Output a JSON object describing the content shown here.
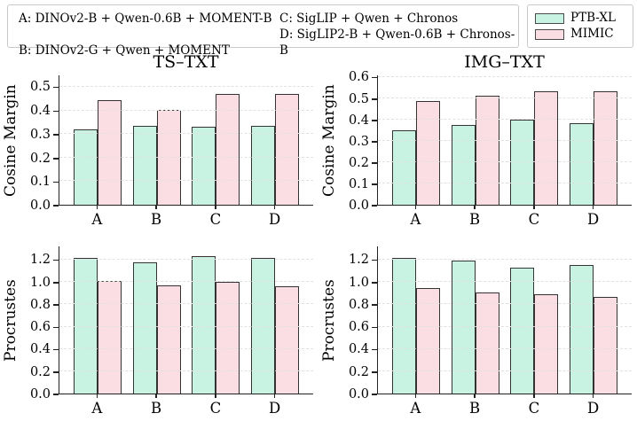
{
  "legend_models": {
    "items": [
      {
        "label": "A: DINOv2-B + Qwen-0.6B + MOMENT-B"
      },
      {
        "label": "B: DINOv2-G + Qwen + MOMENT"
      },
      {
        "label": "C: SigLIP + Qwen + Chronos"
      },
      {
        "label": "D: SigLIP2-B + Qwen-0.6B + Chronos-B"
      }
    ]
  },
  "legend_series": {
    "items": [
      {
        "label": "PTB-XL",
        "color": "#c8f2e2"
      },
      {
        "label": "MIMIC",
        "color": "#fbdee3"
      }
    ]
  },
  "style": {
    "bar_edge_color": "#333333",
    "grid_color": "#e1e1e1",
    "background": "#ffffff"
  },
  "chart_data": [
    {
      "id": "ts-txt-cosine-margin",
      "type": "bar",
      "title": "TS–TXT",
      "xlabel": "",
      "ylabel": "Cosine Margin",
      "categories": [
        "A",
        "B",
        "C",
        "D"
      ],
      "series": [
        {
          "name": "PTB-XL",
          "values": [
            0.32,
            0.335,
            0.33,
            0.335
          ]
        },
        {
          "name": "MIMIC",
          "values": [
            0.445,
            0.405,
            0.47,
            0.47
          ]
        }
      ],
      "yticks": [
        0.0,
        0.1,
        0.2,
        0.3,
        0.4,
        0.5
      ],
      "ylim": [
        0,
        0.55
      ],
      "grid": true,
      "legend_position": "figure-top-right"
    },
    {
      "id": "img-txt-cosine-margin",
      "type": "bar",
      "title": "IMG–TXT",
      "xlabel": "",
      "ylabel": "Cosine Margin",
      "categories": [
        "A",
        "B",
        "C",
        "D"
      ],
      "series": [
        {
          "name": "PTB-XL",
          "values": [
            0.35,
            0.375,
            0.4,
            0.385
          ]
        },
        {
          "name": "MIMIC",
          "values": [
            0.49,
            0.515,
            0.535,
            0.535
          ]
        }
      ],
      "yticks": [
        0.0,
        0.1,
        0.2,
        0.3,
        0.4,
        0.5,
        0.6
      ],
      "ylim": [
        0,
        0.61
      ],
      "grid": true,
      "legend_position": "figure-top-right"
    },
    {
      "id": "ts-txt-procrustes",
      "type": "bar",
      "title": "",
      "xlabel": "",
      "ylabel": "Procrustes",
      "categories": [
        "A",
        "B",
        "C",
        "D"
      ],
      "series": [
        {
          "name": "PTB-XL",
          "values": [
            1.22,
            1.18,
            1.23,
            1.22
          ]
        },
        {
          "name": "MIMIC",
          "values": [
            1.01,
            0.97,
            1.0,
            0.96
          ]
        }
      ],
      "yticks": [
        0.0,
        0.2,
        0.4,
        0.6,
        0.8,
        1.0,
        1.2
      ],
      "ylim": [
        0,
        1.32
      ],
      "grid": true,
      "legend_position": "figure-top-right"
    },
    {
      "id": "img-txt-procrustes",
      "type": "bar",
      "title": "",
      "xlabel": "",
      "ylabel": "Procrustes",
      "categories": [
        "A",
        "B",
        "C",
        "D"
      ],
      "series": [
        {
          "name": "PTB-XL",
          "values": [
            1.22,
            1.19,
            1.13,
            1.15
          ]
        },
        {
          "name": "MIMIC",
          "values": [
            0.95,
            0.91,
            0.89,
            0.87
          ]
        }
      ],
      "yticks": [
        0.0,
        0.2,
        0.4,
        0.6,
        0.8,
        1.0,
        1.2
      ],
      "ylim": [
        0,
        1.32
      ],
      "grid": true,
      "legend_position": "figure-top-right"
    }
  ]
}
